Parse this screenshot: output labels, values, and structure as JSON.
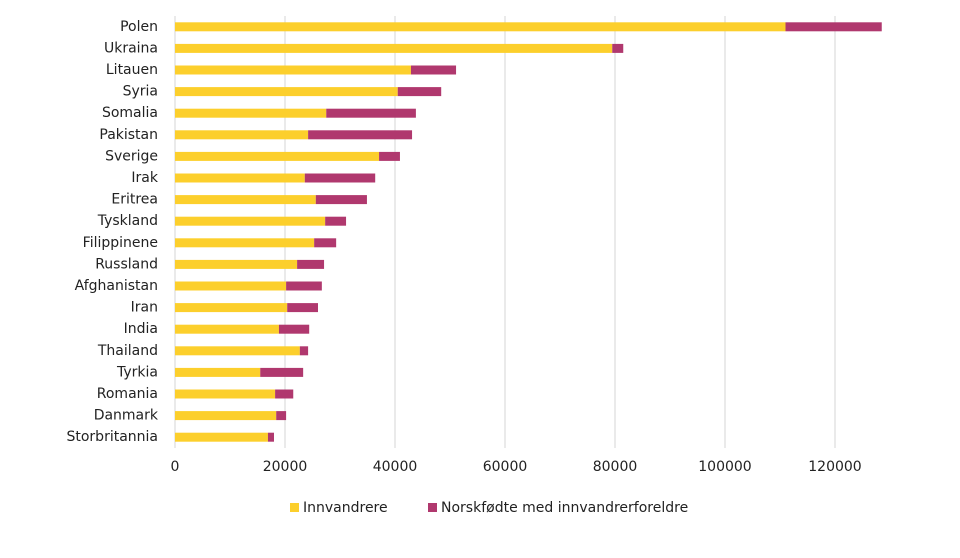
{
  "chart_data": {
    "type": "stacked-hbar",
    "categories": [
      "Polen",
      "Ukraina",
      "Litauen",
      "Syria",
      "Somalia",
      "Pakistan",
      "Sverige",
      "Irak",
      "Eritrea",
      "Tyskland",
      "Filippinene",
      "Russland",
      "Afghanistan",
      "Iran",
      "India",
      "Thailand",
      "Tyrkia",
      "Romania",
      "Danmark",
      "Storbritannia"
    ],
    "series": [
      {
        "name": "Innvandrere",
        "color": "#fccf2c",
        "values": [
          111000,
          79500,
          42900,
          40500,
          27500,
          24200,
          37100,
          23600,
          25600,
          27300,
          25300,
          22200,
          20200,
          20400,
          18900,
          22700,
          15500,
          18200,
          18400,
          16900
        ]
      },
      {
        "name": "Norskfødte med innvandrerforeldre",
        "color": "#b0386e",
        "values": [
          17500,
          2000,
          8200,
          7900,
          16300,
          18900,
          3800,
          12800,
          9300,
          3800,
          4000,
          4900,
          6500,
          5600,
          5500,
          1500,
          7800,
          3300,
          1800,
          1100
        ]
      }
    ],
    "xlim": [
      0,
      130000
    ],
    "xticks": [
      0,
      20000,
      40000,
      60000,
      80000,
      100000,
      120000
    ],
    "grid": true
  }
}
